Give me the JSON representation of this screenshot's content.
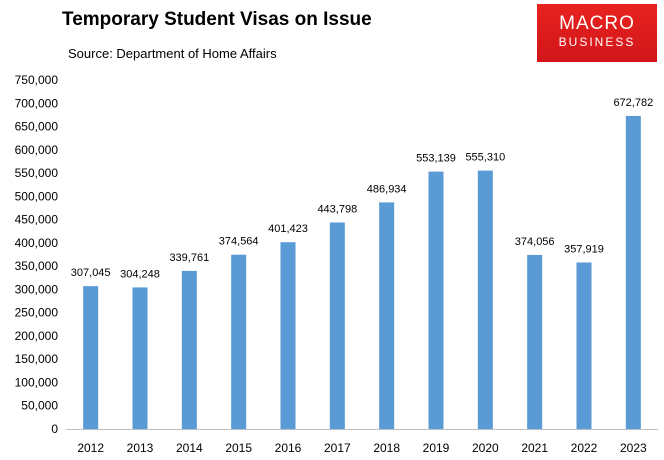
{
  "title": "Temporary Student Visas on Issue",
  "subtitle": "Source: Department of Home Affairs",
  "logo": {
    "line1": "MACRO",
    "line2": "BUSINESS"
  },
  "colors": {
    "bar": "#5b9bd5",
    "axis": "#bfbfbf",
    "logo": "#e01e1e"
  },
  "chart_data": {
    "type": "bar",
    "title": "Temporary Student Visas on Issue",
    "subtitle": "Source: Department of Home Affairs",
    "xlabel": "",
    "ylabel": "",
    "categories": [
      "2012",
      "2013",
      "2014",
      "2015",
      "2016",
      "2017",
      "2018",
      "2019",
      "2020",
      "2021",
      "2022",
      "2023"
    ],
    "values": [
      307045,
      304248,
      339761,
      374564,
      401423,
      443798,
      486934,
      553139,
      555310,
      374056,
      357919,
      672782
    ],
    "data_labels": [
      "307,045",
      "304,248",
      "339,761",
      "374,564",
      "401,423",
      "443,798",
      "486,934",
      "553,139",
      "555,310",
      "374,056",
      "357,919",
      "672,782"
    ],
    "ylim": [
      0,
      750000
    ],
    "yticks": [
      0,
      50000,
      100000,
      150000,
      200000,
      250000,
      300000,
      350000,
      400000,
      450000,
      500000,
      550000,
      600000,
      650000,
      700000,
      750000
    ],
    "ytick_labels": [
      "0",
      "50,000",
      "100,000",
      "150,000",
      "200,000",
      "250,000",
      "300,000",
      "350,000",
      "400,000",
      "450,000",
      "500,000",
      "550,000",
      "600,000",
      "650,000",
      "700,000",
      "750,000"
    ],
    "grid": false,
    "legend": "none"
  }
}
